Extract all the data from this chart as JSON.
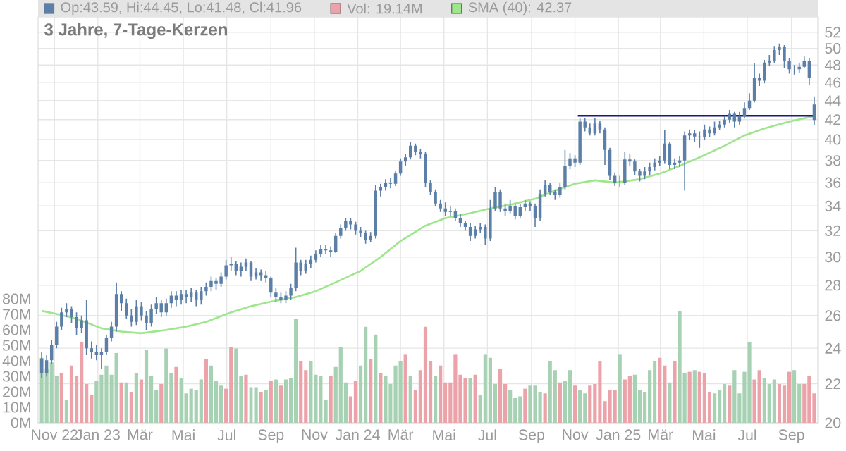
{
  "chart_data": {
    "type": "candlestick",
    "title": "3 Jahre, 7-Tage-Kerzen",
    "legend": "top",
    "grid": true,
    "log": "y",
    "xlim": [
      "2022-10-09",
      "2025-10-08"
    ],
    "ylim": [
      20,
      54
    ],
    "y2lim": [
      0,
      262
    ],
    "xticks": [
      {
        "value": "2022-11-01",
        "label": "Nov 22"
      },
      {
        "value": "2023-01-01",
        "label": "Jan 23"
      },
      {
        "value": "2023-03-01",
        "label": "Mär"
      },
      {
        "value": "2023-05-01",
        "label": "Mai"
      },
      {
        "value": "2023-07-01",
        "label": "Jul"
      },
      {
        "value": "2023-09-01",
        "label": "Sep"
      },
      {
        "value": "2023-11-01",
        "label": "Nov"
      },
      {
        "value": "2024-01-01",
        "label": "Jan 24"
      },
      {
        "value": "2024-03-01",
        "label": "Mär"
      },
      {
        "value": "2024-05-01",
        "label": "Mai"
      },
      {
        "value": "2024-07-01",
        "label": "Jul"
      },
      {
        "value": "2024-09-01",
        "label": "Sep"
      },
      {
        "value": "2024-11-01",
        "label": "Nov"
      },
      {
        "value": "2025-01-01",
        "label": "Jan 25"
      },
      {
        "value": "2025-03-01",
        "label": "Mär"
      },
      {
        "value": "2025-05-01",
        "label": "Mai"
      },
      {
        "value": "2025-07-01",
        "label": "Jul"
      },
      {
        "value": "2025-09-01",
        "label": "Sep"
      }
    ],
    "yticks": [
      20,
      22,
      24,
      26,
      28,
      30,
      32,
      34,
      36,
      38,
      40,
      42,
      44,
      46,
      48,
      50,
      52
    ],
    "y2ticks": [
      {
        "value": 0,
        "label": "0M"
      },
      {
        "value": 10,
        "label": "10M"
      },
      {
        "value": 20,
        "label": "20M"
      },
      {
        "value": 30,
        "label": "30M"
      },
      {
        "value": 40,
        "label": "40M"
      },
      {
        "value": 50,
        "label": "50M"
      },
      {
        "value": 60,
        "label": "60M"
      },
      {
        "value": 70,
        "label": "70M"
      },
      {
        "value": 80,
        "label": "80M"
      }
    ],
    "x": [
      "2022-10-14",
      "2022-10-21",
      "2022-10-28",
      "2022-11-04",
      "2022-11-11",
      "2022-11-18",
      "2022-11-25",
      "2022-12-02",
      "2022-12-09",
      "2022-12-16",
      "2022-12-23",
      "2022-12-30",
      "2023-01-06",
      "2023-01-13",
      "2023-01-20",
      "2023-01-27",
      "2023-02-03",
      "2023-02-10",
      "2023-02-17",
      "2023-02-24",
      "2023-03-03",
      "2023-03-10",
      "2023-03-17",
      "2023-03-24",
      "2023-03-31",
      "2023-04-07",
      "2023-04-14",
      "2023-04-21",
      "2023-04-28",
      "2023-05-05",
      "2023-05-12",
      "2023-05-19",
      "2023-05-26",
      "2023-06-02",
      "2023-06-09",
      "2023-06-16",
      "2023-06-23",
      "2023-06-30",
      "2023-07-07",
      "2023-07-14",
      "2023-07-21",
      "2023-07-28",
      "2023-08-04",
      "2023-08-11",
      "2023-08-18",
      "2023-08-25",
      "2023-09-01",
      "2023-09-08",
      "2023-09-15",
      "2023-09-22",
      "2023-09-29",
      "2023-10-06",
      "2023-10-13",
      "2023-10-20",
      "2023-10-27",
      "2023-11-03",
      "2023-11-10",
      "2023-11-17",
      "2023-11-24",
      "2023-12-01",
      "2023-12-08",
      "2023-12-15",
      "2023-12-22",
      "2023-12-29",
      "2024-01-05",
      "2024-01-12",
      "2024-01-19",
      "2024-01-26",
      "2024-02-02",
      "2024-02-09",
      "2024-02-16",
      "2024-02-23",
      "2024-03-01",
      "2024-03-08",
      "2024-03-15",
      "2024-03-22",
      "2024-03-29",
      "2024-04-05",
      "2024-04-12",
      "2024-04-19",
      "2024-04-26",
      "2024-05-03",
      "2024-05-10",
      "2024-05-17",
      "2024-05-24",
      "2024-05-31",
      "2024-06-07",
      "2024-06-14",
      "2024-06-21",
      "2024-06-28",
      "2024-07-05",
      "2024-07-12",
      "2024-07-19",
      "2024-07-26",
      "2024-08-02",
      "2024-08-09",
      "2024-08-16",
      "2024-08-23",
      "2024-08-30",
      "2024-09-06",
      "2024-09-13",
      "2024-09-20",
      "2024-09-27",
      "2024-10-04",
      "2024-10-11",
      "2024-10-18",
      "2024-10-25",
      "2024-11-01",
      "2024-11-08",
      "2024-11-15",
      "2024-11-22",
      "2024-11-29",
      "2024-12-06",
      "2024-12-13",
      "2024-12-20",
      "2024-12-27",
      "2025-01-03",
      "2025-01-10",
      "2025-01-17",
      "2025-01-24",
      "2025-01-31",
      "2025-02-07",
      "2025-02-14",
      "2025-02-21",
      "2025-02-28",
      "2025-03-07",
      "2025-03-14",
      "2025-03-21",
      "2025-03-28",
      "2025-04-04",
      "2025-04-11",
      "2025-04-18",
      "2025-04-25",
      "2025-05-02",
      "2025-05-09",
      "2025-05-16",
      "2025-05-23",
      "2025-05-30",
      "2025-06-06",
      "2025-06-13",
      "2025-06-20",
      "2025-06-27",
      "2025-07-04",
      "2025-07-11",
      "2025-07-18",
      "2025-07-25",
      "2025-08-01",
      "2025-08-08",
      "2025-08-15",
      "2025-08-22",
      "2025-08-29",
      "2025-09-05",
      "2025-09-12",
      "2025-09-19",
      "2025-09-26",
      "2025-10-03"
    ],
    "series": [
      {
        "name": "Op:43.59, Hi:44.45, Lo:41.48, Cl:41.96",
        "color": "#5b7fa6",
        "ohlc": [
          [
            23.4,
            23.8,
            22.3,
            22.6
          ],
          [
            22.6,
            23.6,
            22.4,
            23.3
          ],
          [
            23.3,
            24.5,
            23.1,
            24.2
          ],
          [
            24.2,
            25.6,
            24.0,
            25.3
          ],
          [
            25.3,
            26.5,
            25.1,
            26.2
          ],
          [
            26.2,
            26.8,
            25.9,
            26.4
          ],
          [
            26.4,
            26.6,
            25.5,
            25.9
          ],
          [
            25.9,
            26.2,
            24.8,
            25.2
          ],
          [
            25.2,
            26.0,
            24.9,
            25.7
          ],
          [
            25.7,
            27.0,
            23.6,
            24.0
          ],
          [
            24.0,
            24.4,
            23.4,
            23.8
          ],
          [
            23.8,
            24.2,
            23.3,
            23.6
          ],
          [
            23.6,
            24.0,
            22.8,
            23.8
          ],
          [
            23.8,
            24.8,
            23.6,
            24.6
          ],
          [
            24.6,
            25.6,
            24.4,
            25.3
          ],
          [
            25.3,
            28.2,
            25.0,
            27.4
          ],
          [
            27.4,
            27.6,
            26.3,
            26.8
          ],
          [
            26.8,
            27.1,
            25.8,
            26.0
          ],
          [
            26.0,
            26.4,
            25.3,
            25.6
          ],
          [
            25.6,
            27.0,
            25.4,
            26.6
          ],
          [
            26.6,
            26.9,
            25.7,
            26.0
          ],
          [
            26.0,
            26.3,
            25.1,
            25.5
          ],
          [
            25.5,
            26.7,
            25.3,
            26.4
          ],
          [
            26.4,
            27.2,
            26.1,
            26.8
          ],
          [
            26.8,
            27.0,
            25.9,
            26.2
          ],
          [
            26.2,
            27.1,
            26.0,
            26.8
          ],
          [
            26.8,
            27.6,
            26.5,
            27.3
          ],
          [
            27.3,
            27.6,
            26.6,
            27.0
          ],
          [
            27.0,
            27.7,
            26.7,
            27.4
          ],
          [
            27.4,
            27.7,
            26.8,
            27.2
          ],
          [
            27.2,
            27.8,
            26.9,
            27.5
          ],
          [
            27.5,
            27.7,
            26.6,
            27.0
          ],
          [
            27.0,
            27.9,
            26.7,
            27.6
          ],
          [
            27.6,
            28.2,
            27.3,
            27.9
          ],
          [
            27.9,
            28.6,
            27.6,
            28.3
          ],
          [
            28.3,
            28.5,
            27.7,
            28.1
          ],
          [
            28.1,
            28.9,
            27.9,
            28.6
          ],
          [
            28.6,
            29.8,
            28.4,
            29.4
          ],
          [
            29.4,
            30.0,
            29.0,
            29.5
          ],
          [
            29.5,
            29.7,
            28.7,
            29.0
          ],
          [
            29.0,
            29.6,
            28.6,
            29.3
          ],
          [
            29.3,
            29.9,
            29.0,
            29.6
          ],
          [
            29.6,
            29.7,
            28.3,
            28.6
          ],
          [
            28.6,
            29.2,
            28.4,
            28.9
          ],
          [
            28.9,
            29.1,
            28.3,
            28.7
          ],
          [
            28.7,
            29.0,
            28.2,
            28.5
          ],
          [
            28.5,
            28.6,
            27.2,
            27.5
          ],
          [
            27.5,
            27.8,
            26.9,
            27.2
          ],
          [
            27.2,
            27.5,
            26.8,
            27.0
          ],
          [
            27.0,
            27.6,
            26.8,
            27.3
          ],
          [
            27.3,
            28.1,
            27.0,
            27.8
          ],
          [
            27.8,
            30.7,
            27.6,
            29.6
          ],
          [
            29.6,
            29.8,
            28.7,
            29.0
          ],
          [
            29.0,
            29.8,
            28.8,
            29.5
          ],
          [
            29.5,
            30.1,
            29.2,
            29.8
          ],
          [
            29.8,
            30.5,
            29.6,
            30.2
          ],
          [
            30.2,
            30.9,
            30.0,
            30.6
          ],
          [
            30.6,
            30.9,
            30.2,
            30.5
          ],
          [
            30.5,
            30.8,
            30.0,
            30.4
          ],
          [
            30.4,
            31.8,
            30.3,
            31.6
          ],
          [
            31.6,
            32.5,
            31.4,
            32.2
          ],
          [
            32.2,
            33.0,
            32.0,
            32.8
          ],
          [
            32.8,
            33.0,
            32.1,
            32.5
          ],
          [
            32.5,
            32.7,
            31.7,
            32.0
          ],
          [
            32.0,
            32.3,
            31.5,
            31.8
          ],
          [
            31.8,
            32.0,
            31.0,
            31.3
          ],
          [
            31.3,
            31.9,
            31.1,
            31.6
          ],
          [
            31.6,
            35.8,
            31.4,
            35.3
          ],
          [
            35.3,
            35.9,
            34.8,
            35.6
          ],
          [
            35.6,
            36.3,
            35.3,
            36.0
          ],
          [
            36.0,
            36.4,
            35.5,
            35.9
          ],
          [
            35.9,
            37.0,
            35.7,
            36.8
          ],
          [
            36.8,
            38.2,
            36.6,
            37.9
          ],
          [
            37.9,
            38.6,
            37.5,
            38.3
          ],
          [
            38.3,
            39.8,
            38.1,
            39.4
          ],
          [
            39.4,
            39.6,
            38.5,
            38.8
          ],
          [
            38.8,
            39.1,
            38.2,
            38.6
          ],
          [
            38.6,
            38.8,
            35.6,
            36.0
          ],
          [
            36.0,
            36.2,
            34.9,
            35.2
          ],
          [
            35.2,
            35.4,
            34.0,
            34.2
          ],
          [
            34.2,
            34.5,
            33.5,
            33.8
          ],
          [
            33.8,
            34.3,
            33.2,
            33.5
          ],
          [
            33.5,
            34.0,
            33.2,
            33.6
          ],
          [
            33.6,
            33.8,
            32.8,
            33.0
          ],
          [
            33.0,
            33.3,
            32.3,
            32.6
          ],
          [
            32.6,
            32.8,
            32.0,
            32.3
          ],
          [
            32.3,
            32.6,
            31.2,
            31.6
          ],
          [
            31.6,
            32.4,
            31.4,
            32.1
          ],
          [
            32.1,
            32.6,
            31.8,
            32.3
          ],
          [
            32.3,
            32.5,
            30.9,
            31.4
          ],
          [
            31.4,
            34.5,
            31.2,
            33.8
          ],
          [
            33.8,
            35.6,
            33.6,
            35.2
          ],
          [
            35.2,
            35.4,
            33.5,
            33.8
          ],
          [
            33.8,
            34.2,
            33.2,
            33.6
          ],
          [
            33.6,
            34.5,
            33.4,
            34.0
          ],
          [
            34.0,
            34.2,
            32.9,
            33.2
          ],
          [
            33.2,
            34.2,
            33.0,
            33.9
          ],
          [
            33.9,
            34.5,
            33.6,
            34.2
          ],
          [
            34.2,
            34.4,
            33.6,
            34.0
          ],
          [
            34.0,
            34.2,
            32.3,
            33.0
          ],
          [
            33.0,
            35.4,
            32.8,
            35.0
          ],
          [
            35.0,
            36.2,
            34.8,
            35.8
          ],
          [
            35.8,
            36.0,
            34.9,
            35.2
          ],
          [
            35.2,
            35.4,
            34.5,
            34.9
          ],
          [
            34.9,
            36.0,
            34.7,
            35.6
          ],
          [
            35.6,
            39.0,
            35.4,
            37.5
          ],
          [
            37.5,
            38.7,
            37.2,
            38.2
          ],
          [
            38.2,
            38.5,
            37.4,
            37.8
          ],
          [
            37.8,
            42.1,
            37.6,
            41.8
          ],
          [
            41.8,
            42.2,
            40.8,
            41.2
          ],
          [
            41.2,
            41.6,
            40.4,
            40.6
          ],
          [
            40.6,
            42.2,
            40.4,
            41.6
          ],
          [
            41.6,
            41.9,
            40.6,
            41.0
          ],
          [
            41.0,
            41.2,
            37.6,
            39.0
          ],
          [
            39.0,
            39.2,
            36.2,
            36.6
          ],
          [
            36.6,
            36.9,
            35.7,
            36.0
          ],
          [
            36.0,
            36.6,
            35.6,
            36.0
          ],
          [
            36.0,
            38.8,
            35.8,
            38.1
          ],
          [
            38.1,
            38.6,
            37.5,
            37.9
          ],
          [
            37.9,
            38.1,
            36.7,
            37.0
          ],
          [
            37.0,
            37.2,
            36.1,
            36.6
          ],
          [
            36.6,
            37.4,
            36.3,
            37.0
          ],
          [
            37.0,
            37.8,
            36.7,
            37.4
          ],
          [
            37.4,
            38.2,
            37.1,
            37.8
          ],
          [
            37.8,
            38.4,
            37.5,
            38.0
          ],
          [
            38.0,
            40.9,
            37.7,
            39.6
          ],
          [
            39.6,
            39.8,
            37.2,
            37.6
          ],
          [
            37.6,
            38.2,
            37.2,
            37.8
          ],
          [
            37.8,
            38.4,
            37.4,
            38.0
          ],
          [
            38.0,
            40.8,
            35.3,
            40.4
          ],
          [
            40.4,
            41.0,
            40.0,
            40.6
          ],
          [
            40.6,
            40.9,
            39.8,
            40.3
          ],
          [
            40.3,
            40.8,
            39.2,
            40.2
          ],
          [
            40.2,
            41.5,
            40.0,
            41.0
          ],
          [
            41.0,
            41.3,
            40.2,
            40.6
          ],
          [
            40.6,
            41.8,
            40.4,
            41.2
          ],
          [
            41.2,
            41.9,
            40.9,
            41.5
          ],
          [
            41.5,
            42.4,
            41.2,
            42.0
          ],
          [
            42.0,
            43.0,
            41.7,
            42.6
          ],
          [
            42.6,
            42.8,
            41.2,
            41.8
          ],
          [
            41.8,
            42.8,
            41.5,
            42.4
          ],
          [
            42.4,
            43.8,
            42.1,
            43.2
          ],
          [
            43.2,
            44.8,
            43.0,
            44.0
          ],
          [
            44.0,
            48.2,
            43.8,
            46.5
          ],
          [
            46.5,
            47.0,
            45.6,
            46.2
          ],
          [
            46.2,
            48.6,
            45.9,
            48.3
          ],
          [
            48.3,
            49.2,
            47.9,
            48.5
          ],
          [
            48.5,
            50.3,
            48.2,
            49.8
          ],
          [
            49.8,
            50.6,
            49.2,
            50.2
          ],
          [
            50.2,
            50.4,
            47.6,
            48.5
          ],
          [
            48.5,
            48.8,
            47.0,
            47.5
          ],
          [
            47.5,
            48.0,
            46.9,
            47.5
          ],
          [
            47.5,
            48.3,
            47.1,
            47.8
          ],
          [
            47.8,
            49.0,
            47.6,
            48.5
          ],
          [
            48.5,
            48.8,
            45.7,
            46.5
          ],
          [
            43.59,
            44.45,
            41.48,
            41.96
          ]
        ]
      },
      {
        "type": "bar",
        "name": "Vol: 19.14M",
        "axis": "y2",
        "color": "#eba3a9",
        "values": [
          42,
          35,
          39,
          30,
          32,
          15,
          37,
          30,
          52,
          25,
          18,
          27,
          31,
          37,
          31,
          45,
          26,
          26,
          20,
          32,
          28,
          47,
          30,
          21,
          25,
          48,
          32,
          36,
          29,
          19,
          22,
          21,
          28,
          41,
          37,
          27,
          24,
          22,
          49,
          48,
          30,
          31,
          23,
          23,
          20,
          21,
          27,
          28,
          24,
          28,
          29,
          67,
          40,
          34,
          40,
          31,
          30,
          15,
          30,
          36,
          49,
          26,
          17,
          27,
          37,
          62,
          41,
          57,
          32,
          30,
          25,
          37,
          40,
          44,
          30,
          21,
          34,
          62,
          40,
          30,
          37,
          26,
          26,
          44,
          31,
          29,
          29,
          31,
          18,
          44,
          42,
          25,
          35,
          25,
          21,
          16,
          17,
          22,
          24,
          24,
          20,
          19,
          40,
          34,
          26,
          27,
          34,
          24,
          21,
          19,
          24,
          25,
          40,
          14,
          21,
          21,
          44,
          28,
          30,
          31,
          21,
          20,
          34,
          40,
          42,
          37,
          26,
          40,
          72,
          32,
          33,
          34,
          33,
          32,
          20,
          19,
          21,
          25,
          24,
          34,
          19,
          33,
          52,
          28,
          34,
          29,
          25,
          28,
          25,
          24,
          33,
          34,
          25,
          25,
          30,
          19
        ],
        "colors": [
          "#a6d1b2",
          "#a6d1b2",
          "#a6d1b2",
          "#a6d1b2",
          "#eba3a9",
          "#a6d1b2",
          "#eba3a9",
          "#eba3a9",
          "#eba3a9",
          "#eba3a9",
          "#eba3a9",
          "#a6d1b2",
          "#a6d1b2",
          "#a6d1b2",
          "#a6d1b2",
          "#a6d1b2",
          "#eba3a9",
          "#a6d1b2",
          "#eba3a9",
          "#a6d1b2",
          "#eba3a9",
          "#a6d1b2",
          "#a6d1b2",
          "#a6d1b2",
          "#eba3a9",
          "#a6d1b2",
          "#a6d1b2",
          "#eba3a9",
          "#a6d1b2",
          "#a6d1b2",
          "#a6d1b2",
          "#a6d1b2",
          "#a6d1b2",
          "#eba3a9",
          "#a6d1b2",
          "#a6d1b2",
          "#a6d1b2",
          "#eba3a9",
          "#eba3a9",
          "#a6d1b2",
          "#a6d1b2",
          "#eba3a9",
          "#a6d1b2",
          "#a6d1b2",
          "#eba3a9",
          "#a6d1b2",
          "#eba3a9",
          "#a6d1b2",
          "#eba3a9",
          "#a6d1b2",
          "#a6d1b2",
          "#a6d1b2",
          "#eba3a9",
          "#eba3a9",
          "#a6d1b2",
          "#a6d1b2",
          "#a6d1b2",
          "#a6d1b2",
          "#eba3a9",
          "#a6d1b2",
          "#a6d1b2",
          "#a6d1b2",
          "#eba3a9",
          "#eba3a9",
          "#a6d1b2",
          "#a6d1b2",
          "#eba3a9",
          "#a6d1b2",
          "#eba3a9",
          "#a6d1b2",
          "#a6d1b2",
          "#a6d1b2",
          "#a6d1b2",
          "#eba3a9",
          "#a6d1b2",
          "#eba3a9",
          "#eba3a9",
          "#eba3a9",
          "#eba3a9",
          "#a6d1b2",
          "#eba3a9",
          "#eba3a9",
          "#eba3a9",
          "#eba3a9",
          "#eba3a9",
          "#eba3a9",
          "#a6d1b2",
          "#eba3a9",
          "#a6d1b2",
          "#a6d1b2",
          "#a6d1b2",
          "#a6d1b2",
          "#eba3a9",
          "#eba3a9",
          "#a6d1b2",
          "#a6d1b2",
          "#a6d1b2",
          "#eba3a9",
          "#a6d1b2",
          "#a6d1b2",
          "#a6d1b2",
          "#eba3a9",
          "#a6d1b2",
          "#a6d1b2",
          "#eba3a9",
          "#a6d1b2",
          "#a6d1b2",
          "#eba3a9",
          "#a6d1b2",
          "#a6d1b2",
          "#eba3a9",
          "#eba3a9",
          "#eba3a9",
          "#eba3a9",
          "#eba3a9",
          "#eba3a9",
          "#a6d1b2",
          "#eba3a9",
          "#eba3a9",
          "#a6d1b2",
          "#a6d1b2",
          "#a6d1b2",
          "#a6d1b2",
          "#a6d1b2",
          "#eba3a9",
          "#eba3a9",
          "#a6d1b2",
          "#eba3a9",
          "#a6d1b2",
          "#a6d1b2",
          "#eba3a9",
          "#a6d1b2",
          "#eba3a9",
          "#eba3a9",
          "#eba3a9",
          "#a6d1b2",
          "#a6d1b2",
          "#a6d1b2",
          "#eba3a9",
          "#a6d1b2",
          "#a6d1b2",
          "#a6d1b2",
          "#a6d1b2",
          "#eba3a9",
          "#eba3a9",
          "#a6d1b2",
          "#a6d1b2",
          "#a6d1b2",
          "#eba3a9",
          "#eba3a9",
          "#eba3a9",
          "#a6d1b2",
          "#a6d1b2",
          "#eba3a9",
          "#eba3a9",
          "#eba3a9"
        ]
      },
      {
        "type": "line",
        "name": "SMA (40): 42.37",
        "color": "#9ee68c",
        "x": [
          "2022-10-14",
          "2022-11-04",
          "2022-12-02",
          "2023-01-06",
          "2023-02-03",
          "2023-03-03",
          "2023-04-07",
          "2023-05-05",
          "2023-06-02",
          "2023-07-07",
          "2023-08-04",
          "2023-09-01",
          "2023-10-06",
          "2023-11-03",
          "2023-12-01",
          "2024-01-05",
          "2024-02-02",
          "2024-03-01",
          "2024-04-05",
          "2024-05-03",
          "2024-06-07",
          "2024-07-05",
          "2024-08-02",
          "2024-09-06",
          "2024-10-04",
          "2024-11-01",
          "2024-11-29",
          "2024-12-27",
          "2025-01-31",
          "2025-02-28",
          "2025-03-28",
          "2025-04-25",
          "2025-05-30",
          "2025-06-27",
          "2025-07-25",
          "2025-08-29",
          "2025-10-03"
        ],
        "values": [
          26.3,
          26.1,
          25.8,
          25.2,
          25.0,
          24.9,
          25.1,
          25.3,
          25.6,
          26.2,
          26.6,
          26.9,
          27.2,
          27.6,
          28.2,
          29.0,
          30.0,
          31.2,
          32.4,
          33.0,
          33.4,
          33.8,
          34.1,
          34.6,
          35.3,
          35.9,
          36.2,
          36.0,
          36.3,
          36.8,
          37.5,
          38.3,
          39.4,
          40.4,
          41.1,
          41.8,
          42.37
        ]
      },
      {
        "type": "line",
        "color": "#1a1a80",
        "x": [
          "2024-11-05",
          "2025-10-05"
        ],
        "values": [
          42.4,
          42.4
        ]
      }
    ]
  }
}
